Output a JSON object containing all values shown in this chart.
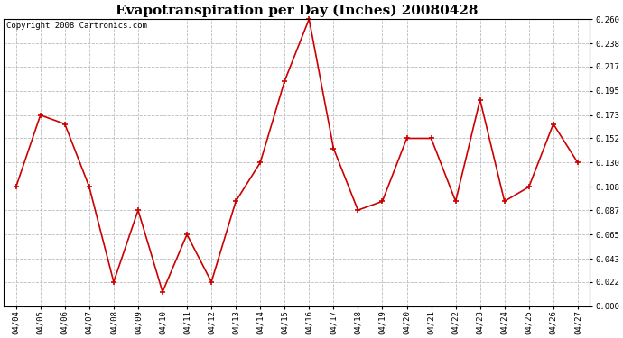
{
  "title": "Evapotranspiration per Day (Inches) 20080428",
  "copyright_text": "Copyright 2008 Cartronics.com",
  "x_labels": [
    "04/04",
    "04/05",
    "04/06",
    "04/07",
    "04/08",
    "04/09",
    "04/10",
    "04/11",
    "04/12",
    "04/13",
    "04/14",
    "04/15",
    "04/16",
    "04/17",
    "04/18",
    "04/19",
    "04/20",
    "04/21",
    "04/22",
    "04/23",
    "04/24",
    "04/25",
    "04/26",
    "04/27"
  ],
  "y_values": [
    0.108,
    0.173,
    0.165,
    0.108,
    0.022,
    0.087,
    0.013,
    0.065,
    0.022,
    0.095,
    0.13,
    0.204,
    0.26,
    0.143,
    0.087,
    0.095,
    0.152,
    0.152,
    0.095,
    0.187,
    0.095,
    0.108,
    0.165,
    0.13
  ],
  "line_color": "#cc0000",
  "marker": "+",
  "marker_size": 5,
  "marker_linewidth": 1.2,
  "line_width": 1.2,
  "ylim": [
    0.0,
    0.26
  ],
  "yticks": [
    0.0,
    0.022,
    0.043,
    0.065,
    0.087,
    0.108,
    0.13,
    0.152,
    0.173,
    0.195,
    0.217,
    0.238,
    0.26
  ],
  "background_color": "#ffffff",
  "grid_color": "#bbbbbb",
  "title_fontsize": 11,
  "tick_fontsize": 6.5,
  "copyright_fontsize": 6.5,
  "fig_width": 6.9,
  "fig_height": 3.75,
  "dpi": 100
}
